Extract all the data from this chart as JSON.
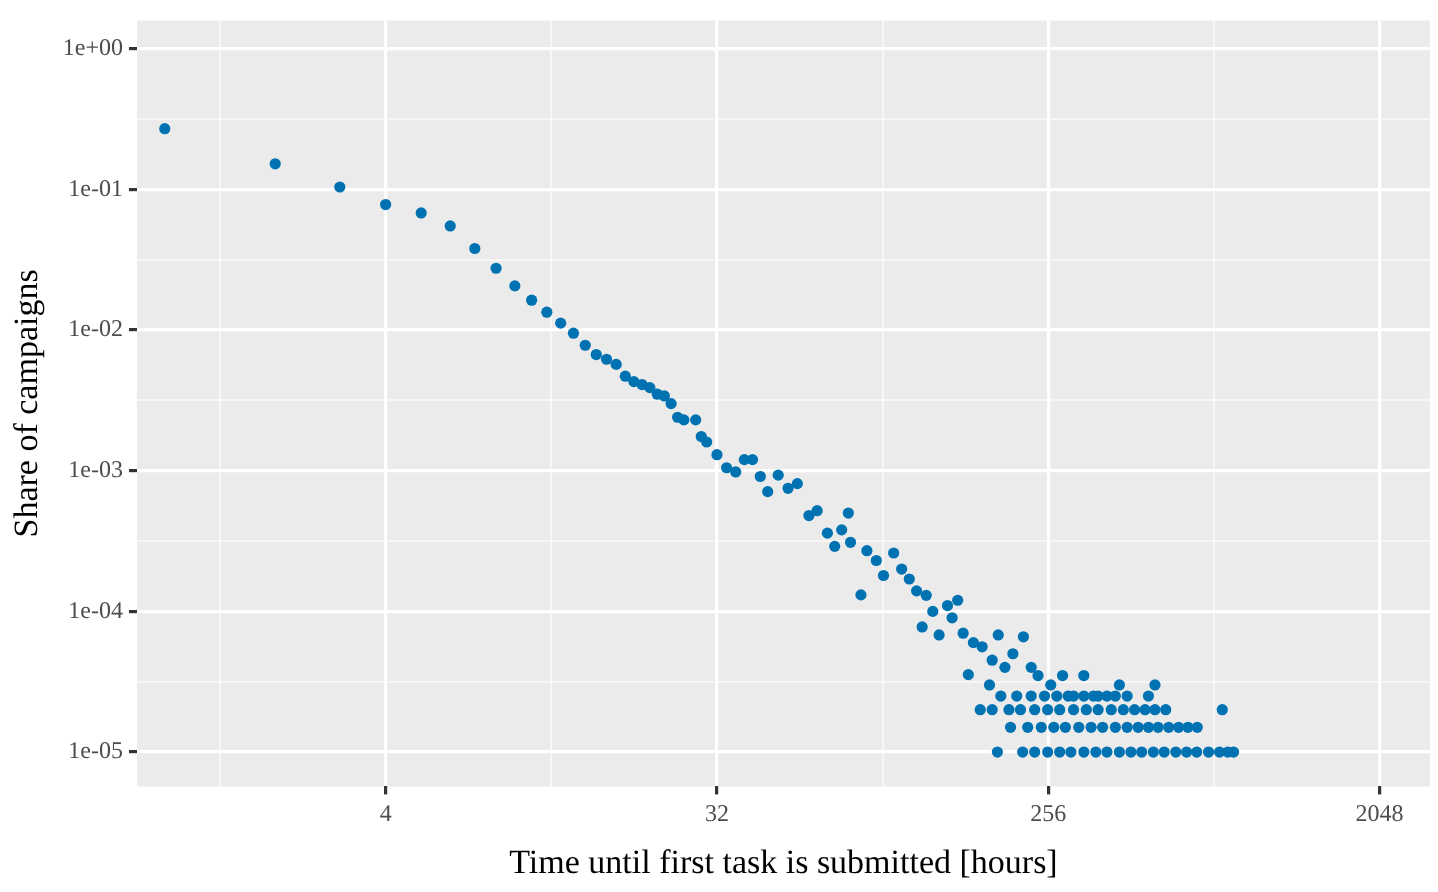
{
  "chart_data": {
    "type": "scatter",
    "xlabel": "Time until first task is submitted [hours]",
    "ylabel": "Share of campaigns",
    "log": "xy",
    "grid": true,
    "marker": "circle",
    "color": "#0072b2",
    "xlim": [
      0.84,
      2810
    ],
    "ylim": [
      5.7e-06,
      1.59
    ],
    "xticks": [
      {
        "value": 1.414,
        "label": null
      },
      4,
      {
        "value": 11.31,
        "label": null
      },
      32,
      {
        "value": 90.51,
        "label": null
      },
      256,
      {
        "value": 724.1,
        "label": null
      },
      2048
    ],
    "yticks": [
      {
        "value": 1e-05,
        "label": "1e-05"
      },
      {
        "value": 3.162e-05,
        "label": null
      },
      {
        "value": 0.0001,
        "label": "1e-04"
      },
      {
        "value": 0.0003162,
        "label": null
      },
      {
        "value": 0.001,
        "label": "1e-03"
      },
      {
        "value": 0.003162,
        "label": null
      },
      {
        "value": 0.01,
        "label": "1e-02"
      },
      {
        "value": 0.03162,
        "label": null
      },
      {
        "value": 0.1,
        "label": "1e-01"
      },
      {
        "value": 0.3162,
        "label": null
      },
      {
        "value": 1,
        "label": "1e+00"
      }
    ],
    "x": [
      1,
      2,
      3,
      4,
      5,
      6,
      7,
      8,
      9,
      10,
      11,
      12,
      13,
      14,
      15,
      16,
      17,
      18,
      19,
      20,
      21,
      22,
      23,
      24,
      25,
      26,
      28,
      29,
      30,
      32,
      34,
      36,
      38,
      40,
      42,
      44,
      47,
      50,
      53,
      57,
      60,
      64,
      67,
      70,
      73,
      74,
      79,
      82,
      87,
      91,
      97,
      102,
      107,
      112,
      116,
      119,
      124,
      129,
      136,
      140,
      145,
      150,
      155,
      160,
      169,
      177,
      180,
      187,
      195,
      205,
      219,
      230,
      240,
      260,
      280,
      300,
      320,
      350,
      400,
      420,
      480,
      500,
      190,
      210,
      230,
      250,
      270,
      290,
      320,
      340,
      370,
      390,
      167,
      180,
      200,
      215,
      235,
      255,
      275,
      300,
      325,
      350,
      380,
      410,
      440,
      470,
      500,
      535,
      763,
      202,
      225,
      245,
      265,
      285,
      310,
      335,
      360,
      390,
      420,
      450,
      480,
      510,
      545,
      580,
      615,
      652,
      186,
      218,
      235,
      255,
      275,
      295,
      320,
      345,
      370,
      400,
      430,
      460,
      495,
      530,
      570,
      610,
      650,
      700,
      750,
      790,
      819
    ],
    "values": [
      0.27,
      0.152,
      0.104,
      0.078,
      0.068,
      0.055,
      0.038,
      0.0275,
      0.0206,
      0.0163,
      0.0134,
      0.0112,
      0.0095,
      0.0078,
      0.0067,
      0.0062,
      0.0057,
      0.0047,
      0.0043,
      0.0041,
      0.0039,
      0.0035,
      0.0034,
      0.003,
      0.0024,
      0.0023,
      0.0023,
      0.00175,
      0.0016,
      0.0013,
      0.00105,
      0.00098,
      0.0012,
      0.0012,
      0.00091,
      0.00071,
      0.00093,
      0.00075,
      0.00081,
      0.00048,
      0.00052,
      0.00036,
      0.00029,
      0.00038,
      0.0005,
      0.00031,
      0.000131,
      0.00027,
      0.00023,
      0.00018,
      0.00026,
      0.0002,
      0.00017,
      0.00014,
      7.75e-05,
      0.00013,
      0.0001,
      6.8e-05,
      0.00011,
      9e-05,
      0.00012,
      7e-05,
      3.55e-05,
      6e-05,
      5.6e-05,
      3e-05,
      4.5e-05,
      6.8e-05,
      4e-05,
      5e-05,
      6.6e-05,
      4e-05,
      3.5e-05,
      3e-05,
      3.5e-05,
      2.5e-05,
      3.5e-05,
      2.5e-05,
      3e-05,
      2.5e-05,
      2.5e-05,
      3e-05,
      2.5e-05,
      2.5e-05,
      2.5e-05,
      2.5e-05,
      2.5e-05,
      2.5e-05,
      2.5e-05,
      2.5e-05,
      2.5e-05,
      2.5e-05,
      2e-05,
      2e-05,
      2e-05,
      2e-05,
      2e-05,
      2e-05,
      2e-05,
      2e-05,
      2e-05,
      2e-05,
      2e-05,
      2e-05,
      2e-05,
      2e-05,
      2e-05,
      2e-05,
      2e-05,
      1.5e-05,
      1.5e-05,
      1.5e-05,
      1.5e-05,
      1.5e-05,
      1.5e-05,
      1.5e-05,
      1.5e-05,
      1.5e-05,
      1.5e-05,
      1.5e-05,
      1.5e-05,
      1.5e-05,
      1.5e-05,
      1.5e-05,
      1.5e-05,
      1.5e-05,
      1e-05,
      1e-05,
      1e-05,
      1e-05,
      1e-05,
      1e-05,
      1e-05,
      1e-05,
      1e-05,
      1e-05,
      1e-05,
      1e-05,
      1e-05,
      1e-05,
      1e-05,
      1e-05,
      1e-05,
      1e-05,
      1e-05,
      1e-05,
      1e-05
    ]
  }
}
